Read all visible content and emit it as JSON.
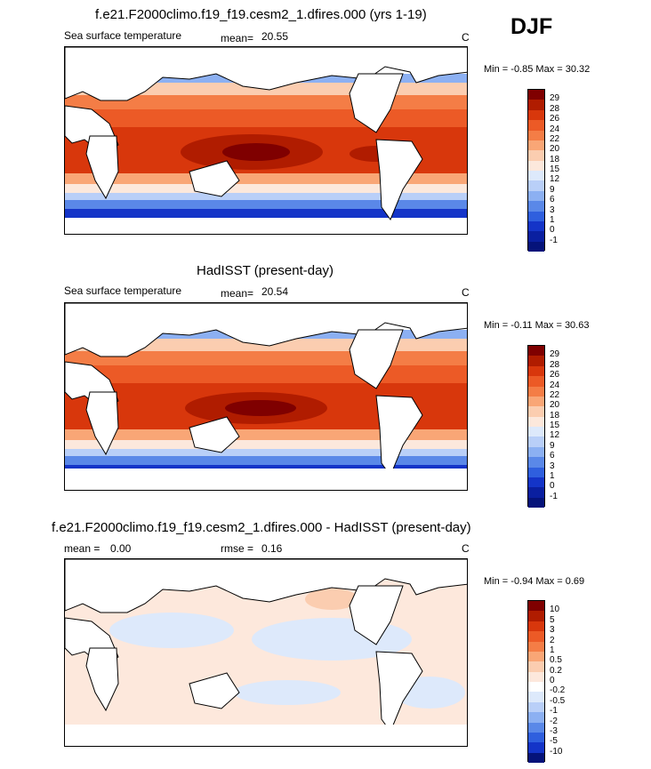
{
  "season": "DJF",
  "panels": [
    {
      "title": "f.e21.F2000climo.f19_f19.cesm2_1.dfires.000 (yrs 1-19)",
      "left_label": "Sea surface temperature",
      "mean_label": "mean=",
      "mean_value": "20.55",
      "units": "C",
      "min_label": "Min =",
      "min_value": "-0.85",
      "max_label": "Max =",
      "max_value": "30.32",
      "colorbar_ticks": [
        "29",
        "28",
        "26",
        "24",
        "22",
        "20",
        "18",
        "15",
        "12",
        "9",
        "6",
        "3",
        "1",
        "0",
        "-1"
      ]
    },
    {
      "title": "HadISST (present-day)",
      "left_label": "Sea surface temperature",
      "mean_label": "mean=",
      "mean_value": "20.54",
      "units": "C",
      "min_label": "Min =",
      "min_value": "-0.11",
      "max_label": "Max =",
      "max_value": "30.63",
      "colorbar_ticks": [
        "29",
        "28",
        "26",
        "24",
        "22",
        "20",
        "18",
        "15",
        "12",
        "9",
        "6",
        "3",
        "1",
        "0",
        "-1"
      ]
    },
    {
      "title": "f.e21.F2000climo.f19_f19.cesm2_1.dfires.000 - HadISST (present-day)",
      "left_label": "mean =",
      "left_value": "0.00",
      "mean_label": "rmse =",
      "mean_value": "0.16",
      "units": "C",
      "min_label": "Min =",
      "min_value": "-0.94",
      "max_label": "Max =",
      "max_value": "0.69",
      "colorbar_ticks": [
        "10",
        "5",
        "3",
        "2",
        "1",
        "0.5",
        "0.2",
        "0",
        "-0.2",
        "-0.5",
        "-1",
        "-2",
        "-3",
        "-5",
        "-10"
      ]
    }
  ],
  "colors": {
    "sst": [
      "#7f0000",
      "#b01c00",
      "#d8370c",
      "#ec5a26",
      "#f47d46",
      "#f9a676",
      "#fbcdb0",
      "#fce8dc",
      "#dde9fb",
      "#b9cff8",
      "#8cb0f2",
      "#5a88e8",
      "#2f5fde",
      "#1434c8",
      "#0a1fa0",
      "#05137a"
    ],
    "diff": [
      "#7f0000",
      "#b01c00",
      "#d8370c",
      "#ec5a26",
      "#f47d46",
      "#f9a676",
      "#fbcdb0",
      "#fde8dc",
      "#ffffff",
      "#dde9fb",
      "#b9cff8",
      "#8cb0f2",
      "#5a88e8",
      "#2f5fde",
      "#1434c8",
      "#05137a"
    ]
  }
}
